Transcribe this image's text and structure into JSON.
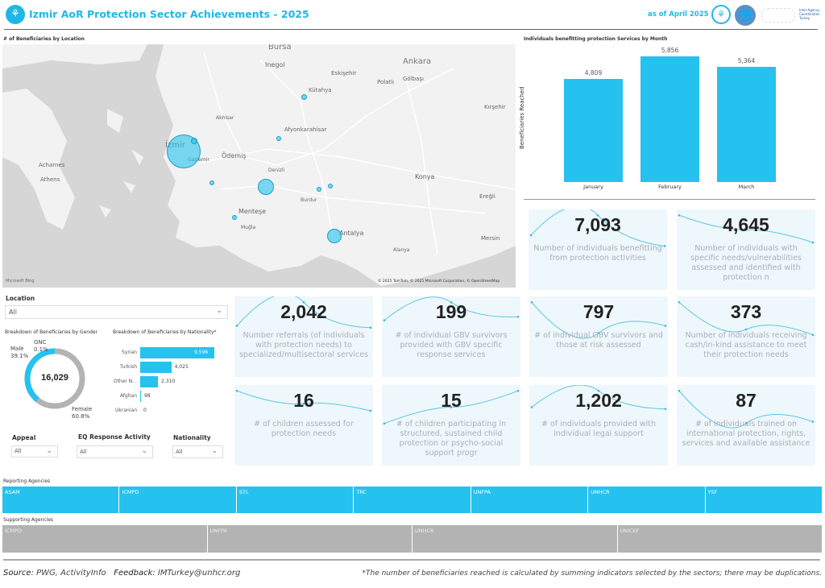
{
  "header": {
    "title": "Izmir AoR Protection Sector Achievements - 2025",
    "as_of": "as of April 2025",
    "iacs_logo_text": "Inter-Agency Coordination Turkey"
  },
  "map": {
    "title": "# of Beneficiaries by Location",
    "attribution": "© 2025 TomTom, © 2025 Microsoft Corporation, © OpenStreetMap",
    "bing": "Microsoft Bing",
    "cities": [
      "Bursa",
      "Ankara",
      "Inegol",
      "Eskişehir",
      "Polatlı",
      "Gölbaşı",
      "Kütahya",
      "Kırşehir",
      "Akhisar",
      "Afyonkarahisar",
      "İzmir",
      "Ödemiş",
      "Gaziemir",
      "Acharnes",
      "Athens",
      "Denizli",
      "Konya",
      "Ereğli",
      "Menteşe",
      "Antalya",
      "Mersin",
      "Alanya",
      "Muğla",
      "Burdur"
    ]
  },
  "month_chart": {
    "title": "Individuals benefitting protection Services by Month",
    "ylabel": "Beneficiaries Reached",
    "chart_data": {
      "type": "bar",
      "categories": [
        "January",
        "February",
        "March"
      ],
      "values": [
        4809,
        5856,
        5364
      ],
      "labels": [
        "4,809",
        "5,856",
        "5,364"
      ],
      "ylabel": "Beneficiaries Reached",
      "ylim": [
        0,
        6200
      ]
    }
  },
  "cards": [
    {
      "value": "7,093",
      "label": "Number of individuals benefitting from protection activities",
      "trend": [
        0.4,
        0.95,
        0.1
      ]
    },
    {
      "value": "4,645",
      "label": "Number of individuals with specific needs/vulnerabilities assessed and identified with protection n",
      "trend": [
        0.95,
        0.55,
        0.2
      ]
    },
    {
      "value": "2,042",
      "label": "Number referrals (of individuals with protection needs) to specialized/multisectoral services",
      "trend": [
        0.3,
        0.95,
        0.25
      ]
    },
    {
      "value": "199",
      "label": "# of individual GBV survivors provided with GBV specific response services",
      "trend": [
        0.45,
        0.95,
        0.55
      ]
    },
    {
      "value": "797",
      "label": "# of individual GBV survivors and those at risk assessed",
      "trend": [
        0.95,
        0.1,
        0.3
      ]
    },
    {
      "value": "373",
      "label": "Number of individuals receiving cash/in-kind assistance to meet their protection needs",
      "trend": [
        0.95,
        0.2,
        0.05
      ]
    },
    {
      "value": "16",
      "label": "# of children assessed for protection needs",
      "trend": [
        0.95,
        0.6,
        0.4
      ]
    },
    {
      "value": "15",
      "label": "# of children participating in structured, sustained child protection or psycho-social support progr",
      "trend": [
        0.05,
        0.5,
        0.95
      ]
    },
    {
      "value": "1,202",
      "label": "# of individuals provided with individual legal support",
      "trend": [
        0.5,
        0.95,
        0.45
      ]
    },
    {
      "value": "87",
      "label": "# of individuals trained on international protection, rights, services and available assistance",
      "trend": [
        0.95,
        0.05,
        0.1
      ]
    }
  ],
  "filters": {
    "location_label": "Location",
    "location_value": "All",
    "appeal_label": "Appeal",
    "appeal_value": "All",
    "eq_label": "EQ Response Activity",
    "eq_value": "All",
    "nationality_label": "Nationality",
    "nationality_value": "All"
  },
  "gender": {
    "title": "Breakdown of Beneficiaries by Gender",
    "total": "16,029",
    "chart_data": {
      "type": "pie",
      "categories": [
        "Male",
        "Female",
        "GNC"
      ],
      "values": [
        39.1,
        60.8,
        0.1
      ],
      "labels": [
        "39.1%",
        "60.8%",
        "0.1%"
      ]
    },
    "colors": {
      "Male": "#25c1ef",
      "Female": "#b3b3b3",
      "GNC": "#666666"
    }
  },
  "nationality": {
    "title": "Breakdown of Beneficiaries by Nationality*",
    "chart_data": {
      "type": "bar",
      "categories": [
        "Syrian",
        "Turkish",
        "Other N...",
        "Afghan",
        "Ukranian"
      ],
      "values": [
        9596,
        4025,
        2310,
        98,
        0
      ],
      "labels": [
        "9,596",
        "4,025",
        "2,310",
        "98",
        "0"
      ]
    }
  },
  "agencies": {
    "reporting_title": "Reporting Agencies",
    "reporting": [
      "ASAM",
      "ICMPD",
      "STL",
      "TRC",
      "UNFPA",
      "UNHCR",
      "YSF"
    ],
    "supporting_title": "Supporting Agencies",
    "supporting": [
      "ICMPD",
      "UNFPA",
      "UNHCR",
      "UNICEF"
    ]
  },
  "footer": {
    "source_label": "Source",
    "source_text": ": PWG, ActivityInfo",
    "feedback_label": "Feedback",
    "feedback_text": ": IMTurkey@unhcr.org",
    "note": "*The number of beneficiaries reached is calculated by summing indicators selected by the sectors; there may be duplications."
  },
  "colors": {
    "accent": "#25c1ef",
    "title": "#1fb8e6",
    "supporting": "#b3b3b3"
  }
}
